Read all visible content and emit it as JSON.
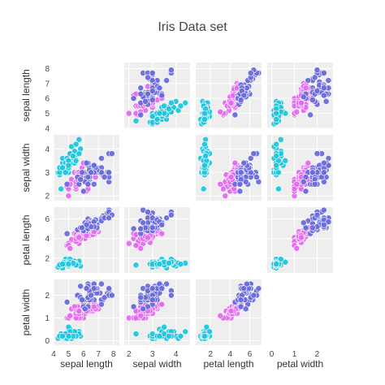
{
  "chart_data": {
    "type": "scatter",
    "title": "Iris Data set",
    "dimensions": [
      "sepal length",
      "sepal width",
      "petal length",
      "petal width"
    ],
    "show_diagonal": false,
    "grid": true,
    "colors": [
      "#22c5dc",
      "#e36af0",
      "#6a6cdc"
    ],
    "ranges": [
      [
        4,
        8.4
      ],
      [
        1.8,
        4.6
      ],
      [
        0.5,
        7.2
      ],
      [
        -0.2,
        2.7
      ]
    ],
    "ticks": [
      [
        4,
        5,
        6,
        7,
        8
      ],
      [
        2,
        3,
        4
      ],
      [
        2,
        4,
        6
      ],
      [
        0,
        1,
        2
      ]
    ],
    "y_ticks": [
      [
        4,
        5,
        6,
        7,
        8
      ],
      [
        2,
        3,
        4
      ],
      [
        2,
        4,
        6
      ],
      [
        0,
        1,
        2
      ]
    ],
    "groups": [
      {
        "color": "#22c5dc",
        "points": [
          [
            5.1,
            3.5,
            1.4,
            0.2
          ],
          [
            4.9,
            3.0,
            1.4,
            0.2
          ],
          [
            4.7,
            3.2,
            1.3,
            0.2
          ],
          [
            4.6,
            3.1,
            1.5,
            0.2
          ],
          [
            5.0,
            3.6,
            1.4,
            0.2
          ],
          [
            5.4,
            3.9,
            1.7,
            0.4
          ],
          [
            4.6,
            3.4,
            1.4,
            0.3
          ],
          [
            5.0,
            3.4,
            1.5,
            0.2
          ],
          [
            4.4,
            2.9,
            1.4,
            0.2
          ],
          [
            4.9,
            3.1,
            1.5,
            0.1
          ],
          [
            5.4,
            3.7,
            1.5,
            0.2
          ],
          [
            4.8,
            3.4,
            1.6,
            0.2
          ],
          [
            4.8,
            3.0,
            1.4,
            0.1
          ],
          [
            4.3,
            3.0,
            1.1,
            0.1
          ],
          [
            5.8,
            4.0,
            1.2,
            0.2
          ],
          [
            5.7,
            4.4,
            1.5,
            0.4
          ],
          [
            5.4,
            3.9,
            1.3,
            0.4
          ],
          [
            5.1,
            3.5,
            1.4,
            0.3
          ],
          [
            5.7,
            3.8,
            1.7,
            0.3
          ],
          [
            5.1,
            3.8,
            1.5,
            0.3
          ],
          [
            5.4,
            3.4,
            1.7,
            0.2
          ],
          [
            5.1,
            3.7,
            1.5,
            0.4
          ],
          [
            4.6,
            3.6,
            1.0,
            0.2
          ],
          [
            5.1,
            3.3,
            1.7,
            0.5
          ],
          [
            4.8,
            3.4,
            1.9,
            0.2
          ],
          [
            5.0,
            3.0,
            1.6,
            0.2
          ],
          [
            5.0,
            3.4,
            1.6,
            0.4
          ],
          [
            5.2,
            3.5,
            1.5,
            0.2
          ],
          [
            5.2,
            3.4,
            1.4,
            0.2
          ],
          [
            4.7,
            3.2,
            1.6,
            0.2
          ],
          [
            4.8,
            3.1,
            1.6,
            0.2
          ],
          [
            5.4,
            3.4,
            1.5,
            0.4
          ],
          [
            5.2,
            4.1,
            1.5,
            0.1
          ],
          [
            5.5,
            4.2,
            1.4,
            0.2
          ],
          [
            4.9,
            3.1,
            1.5,
            0.2
          ],
          [
            5.0,
            3.2,
            1.2,
            0.2
          ],
          [
            5.5,
            3.5,
            1.3,
            0.2
          ],
          [
            4.9,
            3.6,
            1.4,
            0.1
          ],
          [
            4.4,
            3.0,
            1.3,
            0.2
          ],
          [
            5.1,
            3.4,
            1.5,
            0.2
          ],
          [
            5.0,
            3.5,
            1.3,
            0.3
          ],
          [
            4.5,
            2.3,
            1.3,
            0.3
          ],
          [
            4.4,
            3.2,
            1.3,
            0.2
          ],
          [
            5.0,
            3.5,
            1.6,
            0.6
          ],
          [
            5.1,
            3.8,
            1.9,
            0.4
          ],
          [
            4.8,
            3.0,
            1.4,
            0.3
          ],
          [
            5.1,
            3.8,
            1.6,
            0.2
          ],
          [
            4.6,
            3.2,
            1.4,
            0.2
          ],
          [
            5.3,
            3.7,
            1.5,
            0.2
          ],
          [
            5.0,
            3.3,
            1.4,
            0.2
          ]
        ]
      },
      {
        "color": "#e36af0",
        "points": [
          [
            7.0,
            3.2,
            4.7,
            1.4
          ],
          [
            6.4,
            3.2,
            4.5,
            1.5
          ],
          [
            6.9,
            3.1,
            4.9,
            1.5
          ],
          [
            5.5,
            2.3,
            4.0,
            1.3
          ],
          [
            6.5,
            2.8,
            4.6,
            1.5
          ],
          [
            5.7,
            2.8,
            4.5,
            1.3
          ],
          [
            6.3,
            3.3,
            4.7,
            1.6
          ],
          [
            4.9,
            2.4,
            3.3,
            1.0
          ],
          [
            6.6,
            2.9,
            4.6,
            1.3
          ],
          [
            5.2,
            2.7,
            3.9,
            1.4
          ],
          [
            5.0,
            2.0,
            3.5,
            1.0
          ],
          [
            5.9,
            3.0,
            4.2,
            1.5
          ],
          [
            6.0,
            2.2,
            4.0,
            1.0
          ],
          [
            6.1,
            2.9,
            4.7,
            1.4
          ],
          [
            5.6,
            2.9,
            3.6,
            1.3
          ],
          [
            6.7,
            3.1,
            4.4,
            1.4
          ],
          [
            5.6,
            3.0,
            4.5,
            1.5
          ],
          [
            5.8,
            2.7,
            4.1,
            1.0
          ],
          [
            6.2,
            2.2,
            4.5,
            1.5
          ],
          [
            5.6,
            2.5,
            3.9,
            1.1
          ],
          [
            5.9,
            3.2,
            4.8,
            1.8
          ],
          [
            6.1,
            2.8,
            4.0,
            1.3
          ],
          [
            6.3,
            2.5,
            4.9,
            1.5
          ],
          [
            6.1,
            2.8,
            4.7,
            1.2
          ],
          [
            6.4,
            2.9,
            4.3,
            1.3
          ],
          [
            6.6,
            3.0,
            4.4,
            1.4
          ],
          [
            6.8,
            2.8,
            4.8,
            1.4
          ],
          [
            6.7,
            3.0,
            5.0,
            1.7
          ],
          [
            6.0,
            2.9,
            4.5,
            1.5
          ],
          [
            5.7,
            2.6,
            3.5,
            1.0
          ],
          [
            5.5,
            2.4,
            3.8,
            1.1
          ],
          [
            5.5,
            2.4,
            3.7,
            1.0
          ],
          [
            5.8,
            2.7,
            3.9,
            1.2
          ],
          [
            6.0,
            2.7,
            5.1,
            1.6
          ],
          [
            5.4,
            3.0,
            4.5,
            1.5
          ],
          [
            6.0,
            3.4,
            4.5,
            1.6
          ],
          [
            6.7,
            3.1,
            4.7,
            1.5
          ],
          [
            6.3,
            2.3,
            4.4,
            1.3
          ],
          [
            5.6,
            3.0,
            4.1,
            1.3
          ],
          [
            5.5,
            2.5,
            4.0,
            1.3
          ],
          [
            5.5,
            2.6,
            4.4,
            1.2
          ],
          [
            6.1,
            3.0,
            4.6,
            1.4
          ],
          [
            5.8,
            2.6,
            4.0,
            1.2
          ],
          [
            5.0,
            2.3,
            3.3,
            1.0
          ],
          [
            5.6,
            2.7,
            4.2,
            1.3
          ],
          [
            5.7,
            3.0,
            4.2,
            1.2
          ],
          [
            5.7,
            2.9,
            4.2,
            1.3
          ],
          [
            6.2,
            2.9,
            4.3,
            1.3
          ],
          [
            5.1,
            2.5,
            3.0,
            1.1
          ],
          [
            5.7,
            2.8,
            4.1,
            1.3
          ]
        ]
      },
      {
        "color": "#6a6cdc",
        "points": [
          [
            6.3,
            3.3,
            6.0,
            2.5
          ],
          [
            5.8,
            2.7,
            5.1,
            1.9
          ],
          [
            7.1,
            3.0,
            5.9,
            2.1
          ],
          [
            6.3,
            2.9,
            5.6,
            1.8
          ],
          [
            6.5,
            3.0,
            5.8,
            2.2
          ],
          [
            7.6,
            3.0,
            6.6,
            2.1
          ],
          [
            4.9,
            2.5,
            4.5,
            1.7
          ],
          [
            7.3,
            2.9,
            6.3,
            1.8
          ],
          [
            6.7,
            2.5,
            5.8,
            1.8
          ],
          [
            7.2,
            3.6,
            6.1,
            2.5
          ],
          [
            6.5,
            3.2,
            5.1,
            2.0
          ],
          [
            6.4,
            2.7,
            5.3,
            1.9
          ],
          [
            6.8,
            3.0,
            5.5,
            2.1
          ],
          [
            5.7,
            2.5,
            5.0,
            2.0
          ],
          [
            5.8,
            2.8,
            5.1,
            2.4
          ],
          [
            6.4,
            3.2,
            5.3,
            2.3
          ],
          [
            6.5,
            3.0,
            5.5,
            1.8
          ],
          [
            7.7,
            3.8,
            6.7,
            2.2
          ],
          [
            7.7,
            2.6,
            6.9,
            2.3
          ],
          [
            6.0,
            2.2,
            5.0,
            1.5
          ],
          [
            6.9,
            3.2,
            5.7,
            2.3
          ],
          [
            5.6,
            2.8,
            4.9,
            2.0
          ],
          [
            7.7,
            2.8,
            6.7,
            2.0
          ],
          [
            6.3,
            2.7,
            4.9,
            1.8
          ],
          [
            6.7,
            3.3,
            5.7,
            2.1
          ],
          [
            7.2,
            3.2,
            6.0,
            1.8
          ],
          [
            6.2,
            2.8,
            4.8,
            1.8
          ],
          [
            6.1,
            3.0,
            4.9,
            1.8
          ],
          [
            6.4,
            2.8,
            5.6,
            2.1
          ],
          [
            7.2,
            3.0,
            5.8,
            1.6
          ],
          [
            7.4,
            2.8,
            6.1,
            1.9
          ],
          [
            7.9,
            3.8,
            6.4,
            2.0
          ],
          [
            6.4,
            2.8,
            5.6,
            2.2
          ],
          [
            6.3,
            2.8,
            5.1,
            1.5
          ],
          [
            6.1,
            2.6,
            5.6,
            1.4
          ],
          [
            7.7,
            3.0,
            6.1,
            2.3
          ],
          [
            6.3,
            3.4,
            5.6,
            2.4
          ],
          [
            6.4,
            3.1,
            5.5,
            1.8
          ],
          [
            6.0,
            3.0,
            4.8,
            1.8
          ],
          [
            6.9,
            3.1,
            5.4,
            2.1
          ],
          [
            6.7,
            3.1,
            5.6,
            2.4
          ],
          [
            6.9,
            3.1,
            5.1,
            2.3
          ],
          [
            5.8,
            2.7,
            5.1,
            1.9
          ],
          [
            6.8,
            3.2,
            5.9,
            2.3
          ],
          [
            6.7,
            3.3,
            5.7,
            2.5
          ],
          [
            6.7,
            3.0,
            5.2,
            2.3
          ],
          [
            6.3,
            2.5,
            5.0,
            1.9
          ],
          [
            6.5,
            3.0,
            5.2,
            2.0
          ],
          [
            6.2,
            3.4,
            5.4,
            2.3
          ],
          [
            5.9,
            3.0,
            5.1,
            1.8
          ]
        ]
      }
    ]
  }
}
